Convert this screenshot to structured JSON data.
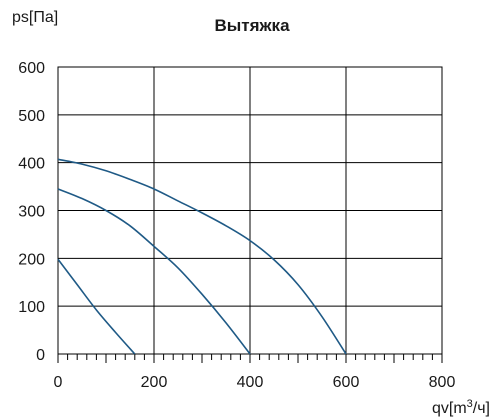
{
  "chart_data": {
    "type": "line",
    "title": "Вытяжка",
    "ylabel": "ps[Па]",
    "xlabel_prefix": "qv[m",
    "xlabel_sup": "3",
    "xlabel_suffix": "/ч]",
    "xlim": [
      0,
      800
    ],
    "ylim": [
      0,
      600
    ],
    "x_ticks": [
      "0",
      "200",
      "400",
      "600",
      "800"
    ],
    "y_ticks": [
      "0",
      "100",
      "200",
      "300",
      "400",
      "500",
      "600"
    ],
    "grid": true,
    "minor_ticks_x_step": 20,
    "series": [
      {
        "x": [
          0,
          40,
          80,
          120,
          160
        ],
        "y": [
          198,
          145,
          92,
          45,
          0
        ]
      },
      {
        "x": [
          0,
          50,
          100,
          150,
          200,
          250,
          300,
          350,
          400
        ],
        "y": [
          345,
          325,
          300,
          268,
          225,
          180,
          125,
          65,
          0
        ]
      },
      {
        "x": [
          0,
          50,
          100,
          150,
          200,
          250,
          300,
          350,
          400,
          450,
          500,
          550,
          600
        ],
        "y": [
          407,
          397,
          383,
          365,
          345,
          320,
          295,
          268,
          237,
          197,
          145,
          78,
          0
        ]
      }
    ],
    "line_color": "#1f5a86",
    "grid_color": "#000000"
  }
}
